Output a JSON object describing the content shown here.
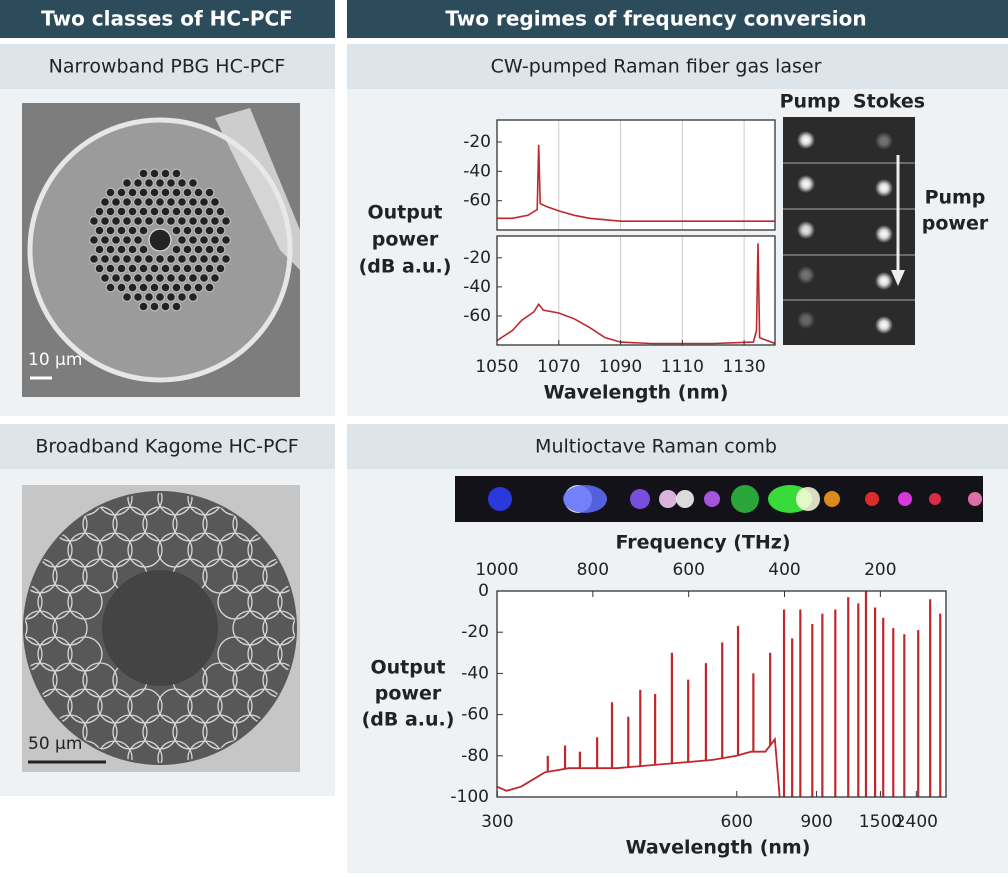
{
  "headers": {
    "left": "Two classes of HC-PCF",
    "right": "Two regimes of frequency conversion"
  },
  "panels": {
    "narrowband": {
      "title": "Narrowband PBG HC-PCF",
      "scale_bar": "10 μm"
    },
    "cw": {
      "title": "CW-pumped Raman fiber gas laser",
      "camera_labels": [
        "Pump",
        "Stokes"
      ],
      "arrow_label": [
        "Pump",
        "power"
      ]
    },
    "kagome": {
      "title": "Broadband Kagome HC-PCF",
      "scale_bar": "50 μm"
    },
    "comb": {
      "title": "Multioctave Raman comb"
    }
  },
  "chart_data": [
    {
      "type": "line",
      "xlim": [
        1050,
        1140
      ],
      "xticks": [
        1050,
        1070,
        1090,
        1110,
        1130
      ],
      "xlabel": "Wavelength (nm)",
      "ylabel": [
        "Output",
        "power",
        "(dB a.u.)"
      ],
      "grid": "x",
      "subplots": [
        {
          "ylim": [
            -80,
            -5
          ],
          "yticks": [
            -20,
            -40,
            -60
          ],
          "series": [
            {
              "color": "#c0272d",
              "x": [
                1050,
                1055,
                1060,
                1063,
                1063.5,
                1064,
                1066,
                1070,
                1075,
                1080,
                1090,
                1110,
                1130,
                1140
              ],
              "values": [
                -72,
                -72,
                -70,
                -66,
                -22,
                -62,
                -64,
                -67,
                -70,
                -72,
                -74,
                -74,
                -74,
                -74
              ]
            }
          ]
        },
        {
          "ylim": [
            -80,
            -5
          ],
          "yticks": [
            -20,
            -40,
            -60
          ],
          "series": [
            {
              "color": "#c0272d",
              "x": [
                1050,
                1055,
                1058,
                1062,
                1063.5,
                1065,
                1070,
                1075,
                1080,
                1085,
                1090,
                1100,
                1120,
                1133,
                1134,
                1134.5,
                1135,
                1140
              ],
              "values": [
                -77,
                -70,
                -63,
                -57,
                -52,
                -56,
                -58,
                -62,
                -68,
                -75,
                -78,
                -79,
                -79,
                -78,
                -70,
                -10,
                -75,
                -79
              ]
            }
          ]
        }
      ]
    },
    {
      "type": "stem",
      "xlim": [
        1000,
        63
      ],
      "xticks": [
        1000,
        800,
        600,
        400,
        200
      ],
      "xlabel": "Frequency (THz)",
      "x2ticks": [
        300,
        600,
        900,
        1500,
        2400
      ],
      "x2label": "Wavelength (nm)",
      "ylim": [
        -100,
        0
      ],
      "yticks": [
        0,
        -20,
        -40,
        -60,
        -80,
        -100
      ],
      "ylabel": [
        "Output",
        "power",
        "(dB a.u.)"
      ],
      "series": [
        {
          "kind": "line",
          "color": "#c0272d",
          "x": [
            1000,
            980,
            950,
            900,
            850,
            800,
            750,
            700,
            650,
            600,
            550,
            500,
            470,
            440,
            420,
            410
          ],
          "values": [
            -95,
            -97,
            -95,
            -88,
            -86,
            -86,
            -86,
            -85,
            -84,
            -83,
            -82,
            -80,
            -78,
            -78,
            -72,
            -100
          ]
        },
        {
          "kind": "stem",
          "color": "#c0272d",
          "x": [
            894,
            858,
            827,
            791,
            760,
            726,
            701,
            670,
            635,
            601,
            564,
            530,
            497,
            465,
            430,
            401,
            384,
            367,
            342,
            321,
            294,
            267,
            246,
            230,
            211,
            194,
            173,
            150,
            121,
            96,
            75
          ],
          "values": [
            -80,
            -75,
            -78,
            -71,
            -54,
            -61,
            -48,
            -50,
            -30,
            -43,
            -35,
            -25,
            -17,
            -40,
            -30,
            -9,
            -23,
            -9,
            -16,
            -11,
            -9,
            -3,
            -6,
            0,
            -8,
            -13,
            -18,
            -21,
            -19,
            -4,
            -11
          ]
        }
      ]
    }
  ]
}
